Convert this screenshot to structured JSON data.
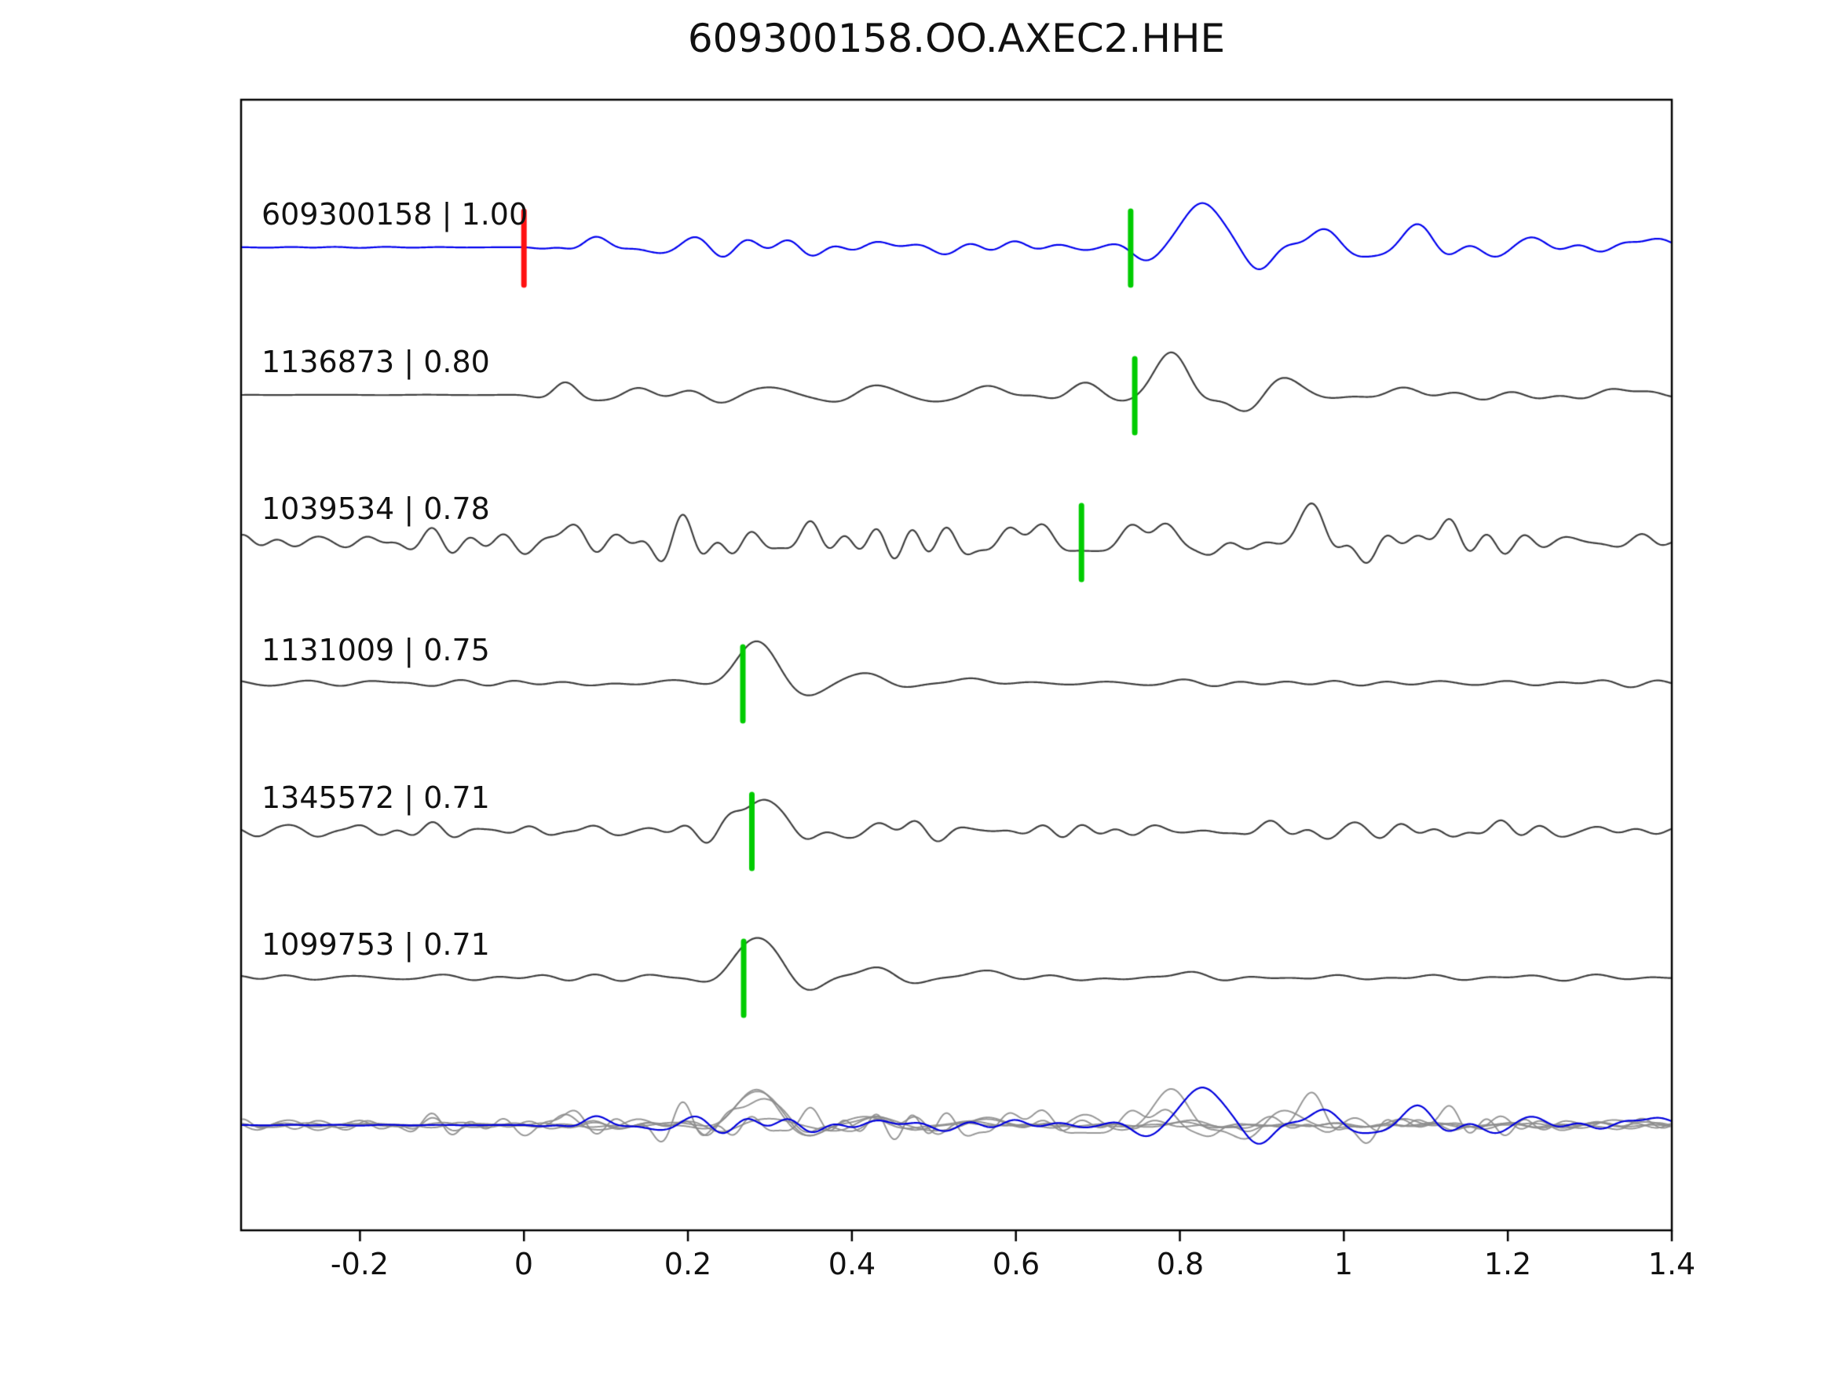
{
  "figure": {
    "title": "609300158.OO.AXEC2.HHE"
  },
  "chart_data": {
    "type": "line",
    "title": "609300158.OO.AXEC2.HHE",
    "xlabel": "",
    "ylabel": "",
    "x_range": [
      -0.345,
      1.4
    ],
    "grid": false,
    "legend": "none",
    "x_ticks": [
      {
        "value": -0.2,
        "label": "-0.2"
      },
      {
        "value": 0,
        "label": "0"
      },
      {
        "value": 0.2,
        "label": "0.2"
      },
      {
        "value": 0.4,
        "label": "0.4"
      },
      {
        "value": 0.6,
        "label": "0.6"
      },
      {
        "value": 0.8,
        "label": "0.8"
      },
      {
        "value": 1,
        "label": "1"
      },
      {
        "value": 1.2,
        "label": "1.2"
      },
      {
        "value": 1.4,
        "label": "1.4"
      }
    ],
    "marker_colors": {
      "pick": "#00cc00",
      "origin": "#ff1111"
    },
    "trace_colors": {
      "reference": "#0000ee",
      "match": "#3f3f3f",
      "overlay_gray": "#8c8c8c",
      "overlay_blue": "#0000dd"
    },
    "traces": [
      {
        "id": "609300158",
        "cc": 1.0,
        "label": "609300158 | 1.00",
        "color": "#0000ee",
        "origin_marker_x": 0.0,
        "pick_x": 0.74,
        "waveform": {
          "seed": 11,
          "noise": {
            "amp": 4,
            "fmin": 7,
            "fmax": 22,
            "components": 22
          },
          "envelope": [
            {
              "x": -0.345,
              "v": 0.05
            },
            {
              "x": -0.01,
              "v": 0.05
            },
            {
              "x": 0.04,
              "v": 0.7
            },
            {
              "x": 0.1,
              "v": 1
            },
            {
              "x": 1.4,
              "v": 1
            }
          ],
          "bursts": [
            {
              "x": 0.085,
              "amp": 16,
              "f": 11,
              "w": 0.035,
              "ph": 1.57
            },
            {
              "x": 0.2,
              "amp": 7,
              "f": 10,
              "w": 0.05,
              "ph": 0.5
            },
            {
              "x": 0.3,
              "amp": 6,
              "f": 9,
              "w": 0.05,
              "ph": 2.2
            },
            {
              "x": 0.46,
              "amp": 6,
              "f": 9,
              "w": 0.05,
              "ph": 2.0
            },
            {
              "x": 0.6,
              "amp": 7,
              "f": 8,
              "w": 0.05,
              "ph": 1.0
            },
            {
              "x": 0.825,
              "amp": 60,
              "f": 6,
              "w": 0.055,
              "ph": 1.57
            },
            {
              "x": 0.965,
              "amp": 22,
              "f": 8,
              "w": 0.05,
              "ph": 1.2
            },
            {
              "x": 1.09,
              "amp": 22,
              "f": 7.5,
              "w": 0.05,
              "ph": 1.5
            },
            {
              "x": 1.23,
              "amp": 10,
              "f": 7,
              "w": 0.06,
              "ph": 0.8
            },
            {
              "x": 1.36,
              "amp": 12,
              "f": 6,
              "w": 0.06,
              "ph": 1.3
            }
          ]
        }
      },
      {
        "id": "1136873",
        "cc": 0.8,
        "label": "1136873 | 0.80",
        "color": "#3f3f3f",
        "origin_marker_x": null,
        "pick_x": 0.745,
        "waveform": {
          "seed": 22,
          "noise": {
            "amp": 3.5,
            "fmin": 7,
            "fmax": 20,
            "components": 22
          },
          "envelope": [
            {
              "x": -0.345,
              "v": 0.04
            },
            {
              "x": 0.01,
              "v": 0.04
            },
            {
              "x": 0.06,
              "v": 0.8
            },
            {
              "x": 0.12,
              "v": 1
            },
            {
              "x": 1.4,
              "v": 1
            }
          ],
          "bursts": [
            {
              "x": 0.05,
              "amp": 15,
              "f": 11,
              "w": 0.03,
              "ph": 1.57
            },
            {
              "x": 0.13,
              "amp": 8,
              "f": 9,
              "w": 0.04,
              "ph": 0.8
            },
            {
              "x": 0.3,
              "amp": 8,
              "f": 8,
              "w": 0.05,
              "ph": 1.4
            },
            {
              "x": 0.42,
              "amp": 9,
              "f": 8,
              "w": 0.05,
              "ph": 1.0
            },
            {
              "x": 0.55,
              "amp": 10,
              "f": 7,
              "w": 0.05,
              "ph": 0.6
            },
            {
              "x": 0.68,
              "amp": 12,
              "f": 7,
              "w": 0.05,
              "ph": 1.8
            },
            {
              "x": 0.795,
              "amp": 55,
              "f": 6,
              "w": 0.05,
              "ph": 2.0
            },
            {
              "x": 0.93,
              "amp": 18,
              "f": 7,
              "w": 0.05,
              "ph": 1.0
            },
            {
              "x": 1.08,
              "amp": 10,
              "f": 7,
              "w": 0.07,
              "ph": 1.5
            },
            {
              "x": 1.33,
              "amp": 8,
              "f": 6,
              "w": 0.08,
              "ph": 1.0
            }
          ]
        }
      },
      {
        "id": "1039534",
        "cc": 0.78,
        "label": "1039534 | 0.78",
        "color": "#3f3f3f",
        "origin_marker_x": null,
        "pick_x": 0.68,
        "waveform": {
          "seed": 33,
          "noise": {
            "amp": 8.5,
            "fmin": 9,
            "fmax": 26,
            "components": 28
          },
          "envelope": [
            {
              "x": -0.345,
              "v": 0.85
            },
            {
              "x": 0.1,
              "v": 1
            },
            {
              "x": 0.8,
              "v": 1.2
            },
            {
              "x": 1.05,
              "v": 1.05
            },
            {
              "x": 1.4,
              "v": 0.85
            }
          ],
          "bursts": [
            {
              "x": 0.05,
              "amp": 20,
              "f": 9,
              "w": 0.05,
              "ph": 1.3
            },
            {
              "x": 0.33,
              "amp": 16,
              "f": 8,
              "w": 0.05,
              "ph": 0.6
            },
            {
              "x": 0.62,
              "amp": 24,
              "f": 8,
              "w": 0.06,
              "ph": 1.8
            },
            {
              "x": 0.78,
              "amp": 28,
              "f": 7,
              "w": 0.06,
              "ph": 2.2
            },
            {
              "x": 0.95,
              "amp": 32,
              "f": 6.5,
              "w": 0.06,
              "ph": 1.4
            },
            {
              "x": 1.1,
              "amp": 22,
              "f": 7,
              "w": 0.06,
              "ph": 1.0
            }
          ]
        }
      },
      {
        "id": "1131009",
        "cc": 0.75,
        "label": "1131009 | 0.75",
        "color": "#3f3f3f",
        "origin_marker_x": null,
        "pick_x": 0.267,
        "waveform": {
          "seed": 44,
          "noise": {
            "amp": 2.5,
            "fmin": 6,
            "fmax": 18,
            "components": 20
          },
          "envelope": [
            {
              "x": -0.345,
              "v": 0.7
            },
            {
              "x": 0.25,
              "v": 0.9
            },
            {
              "x": 0.6,
              "v": 0.8
            },
            {
              "x": 1.4,
              "v": 0.6
            }
          ],
          "bursts": [
            {
              "x": 0.16,
              "amp": 7,
              "f": 7,
              "w": 0.05,
              "ph": 0.3
            },
            {
              "x": 0.289,
              "amp": 58,
              "f": 5.5,
              "w": 0.045,
              "ph": 2.0
            },
            {
              "x": 0.41,
              "amp": 13,
              "f": 7,
              "w": 0.05,
              "ph": 1.2
            },
            {
              "x": 0.53,
              "amp": 8,
              "f": 7,
              "w": 0.06,
              "ph": 0.9
            }
          ]
        }
      },
      {
        "id": "1345572",
        "cc": 0.71,
        "label": "1345572 | 0.71",
        "color": "#3f3f3f",
        "origin_marker_x": null,
        "pick_x": 0.278,
        "waveform": {
          "seed": 55,
          "noise": {
            "amp": 5,
            "fmin": 10,
            "fmax": 28,
            "components": 26
          },
          "envelope": [
            {
              "x": -0.345,
              "v": 1
            },
            {
              "x": 1.4,
              "v": 0.9
            }
          ],
          "bursts": [
            {
              "x": 0.296,
              "amp": 48,
              "f": 5.5,
              "w": 0.045,
              "ph": 2.0
            },
            {
              "x": 0.44,
              "amp": 12,
              "f": 9,
              "w": 0.06,
              "ph": 1.0
            },
            {
              "x": 0.9,
              "amp": 8,
              "f": 9,
              "w": 0.1,
              "ph": 1.2
            },
            {
              "x": 1.18,
              "amp": 9,
              "f": 9,
              "w": 0.08,
              "ph": 0.7
            }
          ]
        }
      },
      {
        "id": "1099753",
        "cc": 0.71,
        "label": "1099753 | 0.71",
        "color": "#3f3f3f",
        "origin_marker_x": null,
        "pick_x": 0.268,
        "waveform": {
          "seed": 66,
          "noise": {
            "amp": 3,
            "fmin": 7,
            "fmax": 18,
            "components": 20
          },
          "envelope": [
            {
              "x": -0.345,
              "v": 0.8
            },
            {
              "x": 0.3,
              "v": 1
            },
            {
              "x": 0.6,
              "v": 0.7
            },
            {
              "x": 1.4,
              "v": 0.6
            }
          ],
          "bursts": [
            {
              "x": 0.292,
              "amp": 58,
              "f": 5.5,
              "w": 0.045,
              "ph": 2.0
            },
            {
              "x": 0.42,
              "amp": 12,
              "f": 7,
              "w": 0.05,
              "ph": 1.3
            },
            {
              "x": 0.55,
              "amp": 9,
              "f": 6,
              "w": 0.06,
              "ph": 1.0
            },
            {
              "x": 0.78,
              "amp": 6,
              "f": 6,
              "w": 0.08,
              "ph": 0.8
            }
          ]
        }
      }
    ],
    "overlay_row": {
      "description": "all traces overlaid at bottom",
      "scale": 0.85
    }
  }
}
